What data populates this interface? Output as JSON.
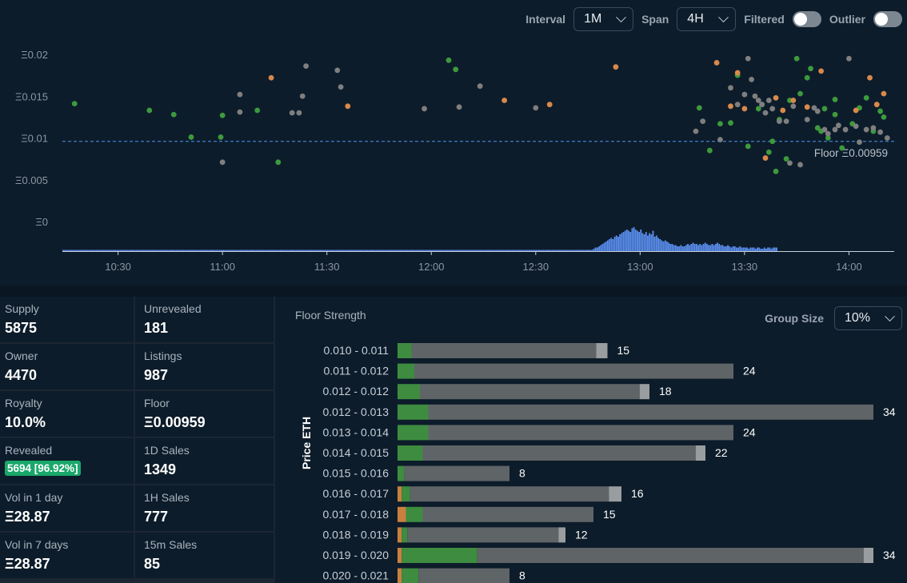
{
  "controls": {
    "interval_label": "Interval",
    "interval_value": "1M",
    "span_label": "Span",
    "span_value": "4H",
    "filtered_label": "Filtered",
    "filtered_on": false,
    "outlier_label": "Outlier",
    "outlier_on": false
  },
  "colors": {
    "green": "#3d9a3d",
    "orange": "#d9894b",
    "gray": "#7f7f7f",
    "volume": "#5b8ff0",
    "floor_line": "#3f7fd1",
    "bar_orange": "#c9803e",
    "bar_green": "#3d8c40",
    "bar_gray": "#5f6467",
    "bar_light": "#9a9d9f"
  },
  "chart_data": [
    {
      "type": "scatter",
      "y_tick_labels": [
        "Ξ0.02",
        "Ξ0.015",
        "Ξ0.01",
        "Ξ0.005",
        "Ξ0"
      ],
      "y_ticks": [
        0.02,
        0.015,
        0.01,
        0.005,
        0
      ],
      "ylim": [
        -0.0035,
        0.0235
      ],
      "x_tick_labels": [
        "10:30",
        "11:00",
        "11:30",
        "12:00",
        "12:30",
        "13:00",
        "13:30",
        "14:00"
      ],
      "x_ticks": [
        630,
        660,
        690,
        720,
        750,
        780,
        810,
        840
      ],
      "xlim": [
        614,
        853
      ],
      "floor_label": "Floor Ξ0.00959",
      "floor_value": 0.00959,
      "series": [
        {
          "kind": "green",
          "x": [
            617.5,
            639,
            646,
            651,
            659.5,
            660,
            670,
            676,
            725,
            727,
            797,
            800,
            803,
            806,
            808,
            811,
            814,
            817,
            820,
            823,
            825,
            828,
            831,
            833,
            836,
            838,
            841,
            843,
            845,
            847,
            849,
            850,
            832,
            829,
            826,
            836,
            834,
            822,
            819,
            818,
            815
          ],
          "y": [
            0.0141,
            0.0133,
            0.0128,
            0.0101,
            0.0101,
            0.0127,
            0.0133,
            0.0071,
            0.0193,
            0.0182,
            0.0136,
            0.0085,
            0.0117,
            0.0118,
            0.0175,
            0.009,
            0.0135,
            0.0083,
            0.0122,
            0.0145,
            0.0195,
            0.0172,
            0.0112,
            0.0135,
            0.0146,
            0.0088,
            0.0117,
            0.0136,
            0.0148,
            0.0108,
            0.0132,
            0.0125,
            0.0108,
            0.0183,
            0.0153,
            0.0128,
            0.01,
            0.0075,
            0.006,
            0.0096,
            0.014
          ]
        },
        {
          "kind": "orange",
          "x": [
            674,
            696,
            741,
            754,
            773,
            802,
            806,
            808,
            810,
            819,
            821,
            824,
            828,
            832,
            842,
            846,
            848,
            850,
            816
          ],
          "y": [
            0.0172,
            0.0138,
            0.0145,
            0.014,
            0.0185,
            0.019,
            0.0138,
            0.0178,
            0.0135,
            0.0148,
            0.0133,
            0.0145,
            0.0137,
            0.018,
            0.0133,
            0.0172,
            0.014,
            0.0153,
            0.0076
          ]
        },
        {
          "kind": "gray",
          "x": [
            660,
            665,
            665,
            680,
            682,
            683,
            684,
            693,
            694,
            718,
            728,
            734,
            750,
            796,
            798,
            803,
            806,
            808,
            810,
            811,
            813,
            815,
            817,
            822,
            824,
            826,
            828,
            830,
            834,
            836,
            840,
            842,
            845,
            847,
            849,
            851,
            812,
            814,
            816,
            818,
            820,
            823,
            831,
            833,
            837,
            839,
            843
          ],
          "y": [
            0.0071,
            0.0152,
            0.0131,
            0.013,
            0.013,
            0.015,
            0.0186,
            0.0181,
            0.0161,
            0.0135,
            0.0137,
            0.0162,
            0.0136,
            0.0108,
            0.012,
            0.0098,
            0.016,
            0.014,
            0.0152,
            0.0195,
            0.015,
            0.014,
            0.0145,
            0.012,
            0.0138,
            0.0068,
            0.0122,
            0.0136,
            0.0105,
            0.011,
            0.0195,
            0.0114,
            0.011,
            0.0112,
            0.0107,
            0.01,
            0.017,
            0.0145,
            0.013,
            0.0135,
            0.012,
            0.007,
            0.0132,
            0.011,
            0.0115,
            0.011,
            0.0095
          ]
        }
      ]
    },
    {
      "type": "bar",
      "series_name": "volume",
      "start_minute": 614,
      "step_minutes": 0.5,
      "values": [
        1,
        1,
        1,
        1,
        1,
        1,
        1,
        1,
        1,
        1,
        1,
        1,
        1,
        1,
        1,
        1,
        1,
        1,
        1,
        1,
        1,
        1,
        1,
        1,
        1,
        1,
        1,
        1,
        1,
        1,
        1,
        1,
        1,
        1,
        1,
        1,
        1,
        1,
        1,
        1,
        1,
        1,
        1,
        1,
        1,
        1,
        1,
        1,
        1,
        1,
        1,
        1,
        1,
        1,
        1,
        1,
        1,
        1,
        1,
        1,
        1,
        1,
        1,
        1,
        1,
        1,
        1,
        1,
        1,
        1,
        1,
        1,
        1,
        1,
        1,
        1,
        1,
        1,
        1,
        1,
        1,
        1,
        1,
        1,
        1,
        1,
        1,
        1,
        1,
        1,
        1,
        1,
        1,
        1,
        1,
        1,
        1,
        1,
        1,
        1,
        1,
        1,
        1,
        1,
        1,
        1,
        1,
        1,
        1,
        1,
        1,
        1,
        1,
        1,
        1,
        1,
        1,
        1,
        1,
        1,
        1,
        1,
        1,
        1,
        1,
        1,
        1,
        1,
        1,
        1,
        1,
        1,
        1,
        1,
        1,
        1,
        1,
        1,
        1,
        1,
        1,
        1,
        1,
        1,
        1,
        1,
        1,
        1,
        1,
        1,
        1,
        1,
        1,
        1,
        1,
        1,
        1,
        1,
        1,
        1,
        1,
        1,
        1,
        1,
        1,
        1,
        1,
        1,
        1,
        1,
        1,
        1,
        1,
        1,
        1,
        1,
        1,
        1,
        1,
        1,
        1,
        1,
        1,
        1,
        1,
        1,
        1,
        1,
        1,
        1,
        1,
        1,
        1,
        1,
        1,
        1,
        1,
        1,
        1,
        1,
        1,
        1,
        1,
        1,
        1,
        1,
        1,
        1,
        1,
        1,
        1,
        1,
        1,
        1,
        1,
        1,
        1,
        1,
        1,
        1,
        1,
        1,
        1,
        1,
        1,
        1,
        1,
        1,
        1,
        1,
        1,
        1,
        1,
        1,
        1,
        1,
        1,
        1,
        1,
        1,
        1,
        1,
        1,
        1,
        1,
        1,
        1,
        1,
        1,
        1,
        1,
        1,
        1,
        1,
        1,
        1,
        1,
        1,
        1,
        1,
        1,
        1,
        1,
        1,
        1,
        1,
        1,
        1,
        1,
        1,
        1,
        1,
        1,
        1,
        1,
        1,
        1,
        1,
        1,
        1,
        1,
        1,
        1,
        1,
        1,
        1,
        1,
        1,
        1,
        1,
        1,
        1,
        1,
        1,
        1,
        1,
        1,
        1,
        1,
        1,
        1,
        1,
        1,
        1,
        1,
        2,
        3,
        3,
        4,
        5,
        6,
        7,
        8,
        9,
        10,
        11,
        10,
        12,
        13,
        12,
        14,
        15,
        16,
        17,
        18,
        17,
        16,
        19,
        20,
        18,
        17,
        16,
        18,
        15,
        14,
        16,
        13,
        15,
        14,
        17,
        12,
        13,
        11,
        10,
        9,
        8,
        9,
        8,
        7,
        6,
        6,
        5,
        5,
        4,
        4,
        5,
        4,
        4,
        5,
        6,
        5,
        6,
        7,
        6,
        6,
        5,
        6,
        5,
        6,
        7,
        6,
        5,
        5,
        6,
        5,
        6,
        7,
        6,
        5,
        5,
        4,
        4,
        5,
        4,
        3,
        4,
        4,
        3,
        3,
        4,
        3,
        3,
        3,
        3,
        2,
        3,
        3,
        3,
        2,
        3,
        3,
        2,
        2,
        3,
        2,
        3,
        3,
        2,
        3,
        3,
        3
      ]
    },
    {
      "type": "bar",
      "title": "Floor Strength",
      "ylabel": "Price ETH",
      "categories": [
        "0.010 - 0.011",
        "0.011 - 0.012",
        "0.012 - 0.012",
        "0.012 - 0.013",
        "0.013 - 0.014",
        "0.014 - 0.015",
        "0.015 - 0.016",
        "0.016 - 0.017",
        "0.017 - 0.018",
        "0.018 - 0.019",
        "0.019 - 0.020",
        "0.020 - 0.021"
      ],
      "totals": [
        15,
        24,
        18,
        34,
        24,
        22,
        8,
        16,
        15,
        12,
        34,
        8
      ],
      "series": [
        {
          "kind": "orange",
          "values": [
            0,
            0,
            0,
            0,
            0,
            0,
            0,
            0.3,
            0.6,
            0.3,
            0.3,
            0.3
          ]
        },
        {
          "kind": "green",
          "values": [
            1.0,
            1.2,
            1.6,
            2.2,
            2.2,
            1.8,
            0.5,
            0.6,
            1.2,
            0.4,
            5.4,
            1.2
          ]
        },
        {
          "kind": "gray",
          "values": [
            13.2,
            22.8,
            15.7,
            31.8,
            21.8,
            19.5,
            7.5,
            14.2,
            12.2,
            10.8,
            27.6,
            6.5
          ]
        },
        {
          "kind": "light",
          "values": [
            0.8,
            0,
            0.7,
            0,
            0,
            0.7,
            0,
            0.9,
            0,
            0.5,
            0.7,
            0
          ]
        }
      ],
      "xlim": [
        0,
        34
      ]
    }
  ],
  "stats": {
    "supply_label": "Supply",
    "supply_value": "5875",
    "unrevealed_label": "Unrevealed",
    "unrevealed_value": "181",
    "owner_label": "Owner",
    "owner_value": "4470",
    "listings_label": "Listings",
    "listings_value": "987",
    "royalty_label": "Royalty",
    "royalty_value": "10.0%",
    "floor_label": "Floor",
    "floor_value": "Ξ0.00959",
    "revealed_label": "Revealed",
    "revealed_value": "5694 [96.92%]",
    "sales_1d_label": "1D Sales",
    "sales_1d_value": "1349",
    "vol_1d_label": "Vol in 1 day",
    "vol_1d_value": "Ξ28.87",
    "sales_1h_label": "1H Sales",
    "sales_1h_value": "777",
    "vol_7d_label": "Vol in 7 days",
    "vol_7d_value": "Ξ28.87",
    "sales_15m_label": "15m Sales",
    "sales_15m_value": "85"
  },
  "floor_panel": {
    "title": "Floor Strength",
    "group_size_label": "Group Size",
    "group_size_value": "10%"
  }
}
